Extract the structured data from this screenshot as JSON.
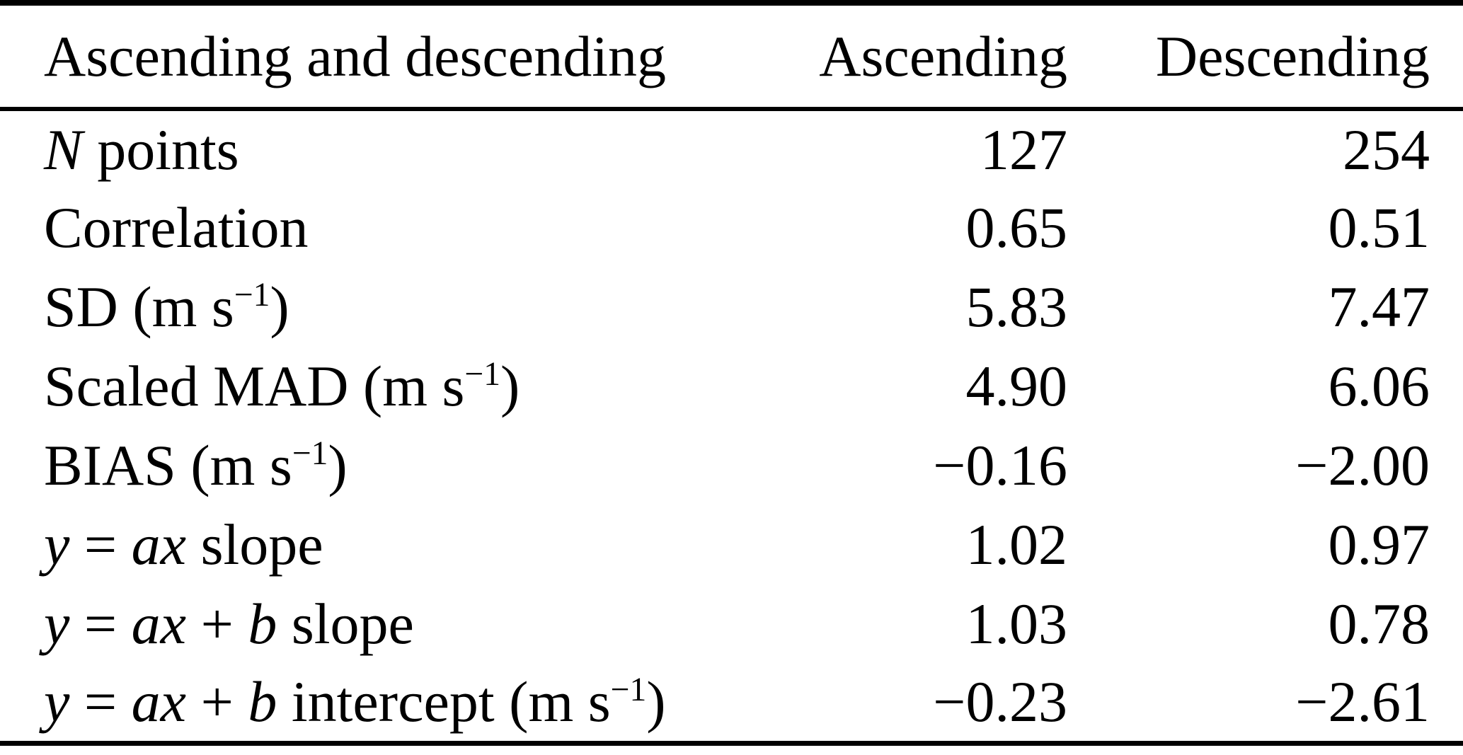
{
  "page": {
    "background_color": "#ffffff",
    "text_color": "#000000",
    "rule_color": "#000000"
  },
  "table": {
    "header": {
      "label": "Ascending and descending",
      "ascending": "Ascending",
      "descending": "Descending"
    },
    "rows": [
      {
        "label": [
          {
            "t": "N",
            "s": "i"
          },
          {
            "t": " points"
          }
        ],
        "ascending": "127",
        "descending": "254"
      },
      {
        "label": [
          {
            "t": "Correlation"
          }
        ],
        "ascending": "0.65",
        "descending": "0.51"
      },
      {
        "label": [
          {
            "t": "SD (m s"
          },
          {
            "t": "−1",
            "s": "sup"
          },
          {
            "t": ")"
          }
        ],
        "ascending": "5.83",
        "descending": "7.47"
      },
      {
        "label": [
          {
            "t": "Scaled MAD (m s"
          },
          {
            "t": "−1",
            "s": "sup"
          },
          {
            "t": ")"
          }
        ],
        "ascending": "4.90",
        "descending": "6.06"
      },
      {
        "label": [
          {
            "t": "BIAS (m s"
          },
          {
            "t": "−1",
            "s": "sup"
          },
          {
            "t": ")"
          }
        ],
        "ascending": "−0.16",
        "descending": "−2.00"
      },
      {
        "label": [
          {
            "t": "y",
            "s": "i"
          },
          {
            "t": " = "
          },
          {
            "t": "ax",
            "s": "i"
          },
          {
            "t": " slope"
          }
        ],
        "ascending": "1.02",
        "descending": "0.97"
      },
      {
        "label": [
          {
            "t": "y",
            "s": "i"
          },
          {
            "t": " = "
          },
          {
            "t": "ax",
            "s": "i"
          },
          {
            "t": " + "
          },
          {
            "t": "b",
            "s": "i"
          },
          {
            "t": " slope"
          }
        ],
        "ascending": "1.03",
        "descending": "0.78"
      },
      {
        "label": [
          {
            "t": "y",
            "s": "i"
          },
          {
            "t": " = "
          },
          {
            "t": "ax",
            "s": "i"
          },
          {
            "t": " + "
          },
          {
            "t": "b",
            "s": "i"
          },
          {
            "t": " intercept (m s"
          },
          {
            "t": "−1",
            "s": "sup"
          },
          {
            "t": ")"
          }
        ],
        "ascending": "−0.23",
        "descending": "−2.61"
      }
    ]
  }
}
